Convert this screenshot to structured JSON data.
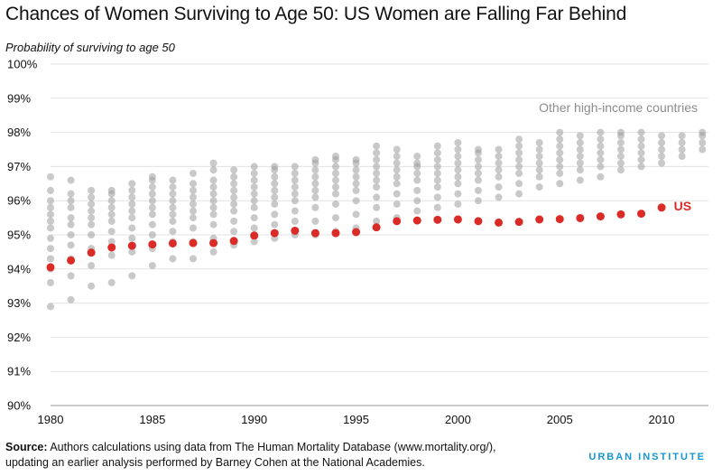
{
  "chart_data": {
    "type": "scatter",
    "title": "Chances of Women Surviving to Age 50: US Women are Falling Far Behind",
    "ylabel": "Probability of surviving to age 50",
    "xlabel": "",
    "xlim": [
      1980,
      2012.3
    ],
    "ylim": [
      90,
      100
    ],
    "x_ticks": [
      1980,
      1985,
      1990,
      1995,
      2000,
      2005,
      2010
    ],
    "y_ticks": [
      90,
      91,
      92,
      93,
      94,
      95,
      96,
      97,
      98,
      99,
      100
    ],
    "y_tick_labels": [
      "90%",
      "91%",
      "92%",
      "93%",
      "94%",
      "95%",
      "96%",
      "97%",
      "98%",
      "99%",
      "100%"
    ],
    "grid": true,
    "series": [
      {
        "name": "US",
        "color": "#db2b27",
        "x": [
          1980,
          1981,
          1982,
          1983,
          1984,
          1985,
          1986,
          1987,
          1988,
          1989,
          1990,
          1991,
          1992,
          1993,
          1994,
          1995,
          1996,
          1997,
          1998,
          1999,
          2000,
          2001,
          2002,
          2003,
          2004,
          2005,
          2006,
          2007,
          2008,
          2009,
          2010
        ],
        "y": [
          94.05,
          94.25,
          94.48,
          94.63,
          94.68,
          94.72,
          94.75,
          94.76,
          94.76,
          94.82,
          94.98,
          95.05,
          95.12,
          95.05,
          95.05,
          95.08,
          95.22,
          95.4,
          95.42,
          95.44,
          95.45,
          95.4,
          95.36,
          95.38,
          95.45,
          95.46,
          95.49,
          95.54,
          95.6,
          95.62,
          95.8
        ]
      },
      {
        "name": "Other high-income countries",
        "color": "#9d9d9d",
        "points": [
          [
            1980,
            [
              92.9,
              93.6,
              94.0,
              94.3,
              94.6,
              94.9,
              95.2,
              95.4,
              95.6,
              95.8,
              96.0,
              96.3,
              96.7
            ]
          ],
          [
            1981,
            [
              93.1,
              93.8,
              94.3,
              94.7,
              95.0,
              95.3,
              95.5,
              95.8,
              96.0,
              96.2,
              96.6
            ]
          ],
          [
            1982,
            [
              93.5,
              94.1,
              94.6,
              95.0,
              95.3,
              95.5,
              95.7,
              95.9,
              96.1,
              96.3
            ]
          ],
          [
            1983,
            [
              93.6,
              94.4,
              94.8,
              95.1,
              95.4,
              95.6,
              95.8,
              96.0,
              96.2,
              96.3
            ]
          ],
          [
            1984,
            [
              93.8,
              94.5,
              94.9,
              95.2,
              95.5,
              95.7,
              95.9,
              96.1,
              96.3,
              96.5
            ]
          ],
          [
            1985,
            [
              94.1,
              94.6,
              95.0,
              95.3,
              95.6,
              95.8,
              96.0,
              96.2,
              96.4,
              96.6,
              96.7
            ]
          ],
          [
            1986,
            [
              94.3,
              94.8,
              95.1,
              95.4,
              95.6,
              95.8,
              96.0,
              96.2,
              96.4,
              96.6
            ]
          ],
          [
            1987,
            [
              94.3,
              94.8,
              95.2,
              95.5,
              95.7,
              95.9,
              96.1,
              96.3,
              96.5,
              96.8
            ]
          ],
          [
            1988,
            [
              94.5,
              94.9,
              95.3,
              95.6,
              95.8,
              96.0,
              96.2,
              96.4,
              96.6,
              96.9,
              97.1
            ]
          ],
          [
            1989,
            [
              94.7,
              95.1,
              95.4,
              95.7,
              95.9,
              96.1,
              96.3,
              96.5,
              96.7,
              96.9
            ]
          ],
          [
            1990,
            [
              94.8,
              95.2,
              95.5,
              95.8,
              96.0,
              96.2,
              96.4,
              96.6,
              96.8,
              97.0
            ]
          ],
          [
            1991,
            [
              94.9,
              95.3,
              95.6,
              95.9,
              96.1,
              96.3,
              96.5,
              96.7,
              96.9,
              97.0
            ]
          ],
          [
            1992,
            [
              95.0,
              95.4,
              95.7,
              96.0,
              96.2,
              96.4,
              96.6,
              96.8,
              97.0
            ]
          ],
          [
            1993,
            [
              95.0,
              95.4,
              95.8,
              96.1,
              96.3,
              96.5,
              96.7,
              96.9,
              97.1,
              97.2
            ]
          ],
          [
            1994,
            [
              95.1,
              95.5,
              95.9,
              96.2,
              96.4,
              96.6,
              96.8,
              97.0,
              97.2,
              97.3
            ]
          ],
          [
            1995,
            [
              95.2,
              95.6,
              96.0,
              96.3,
              96.5,
              96.7,
              96.9,
              97.1,
              97.2
            ]
          ],
          [
            1996,
            [
              95.4,
              95.8,
              96.1,
              96.4,
              96.6,
              96.8,
              97.0,
              97.2,
              97.4,
              97.6
            ]
          ],
          [
            1997,
            [
              95.5,
              95.9,
              96.2,
              96.5,
              96.7,
              96.9,
              97.1,
              97.3,
              97.5
            ]
          ],
          [
            1998,
            [
              95.7,
              96.0,
              96.3,
              96.6,
              96.8,
              97.0,
              97.1,
              97.3
            ]
          ],
          [
            1999,
            [
              95.8,
              96.1,
              96.4,
              96.6,
              96.8,
              97.0,
              97.2,
              97.4,
              97.6
            ]
          ],
          [
            2000,
            [
              95.9,
              96.2,
              96.5,
              96.7,
              96.9,
              97.1,
              97.3,
              97.5,
              97.7
            ]
          ],
          [
            2001,
            [
              96.0,
              96.3,
              96.6,
              96.8,
              97.0,
              97.2,
              97.4,
              97.5
            ]
          ],
          [
            2002,
            [
              96.1,
              96.4,
              96.7,
              96.9,
              97.1,
              97.3,
              97.5
            ]
          ],
          [
            2003,
            [
              96.2,
              96.5,
              96.8,
              97.0,
              97.2,
              97.4,
              97.6,
              97.8
            ]
          ],
          [
            2004,
            [
              96.4,
              96.7,
              96.9,
              97.1,
              97.3,
              97.5,
              97.7
            ]
          ],
          [
            2005,
            [
              96.5,
              96.8,
              97.0,
              97.2,
              97.4,
              97.6,
              97.8,
              98.0
            ]
          ],
          [
            2006,
            [
              96.6,
              96.9,
              97.1,
              97.3,
              97.5,
              97.7,
              97.9
            ]
          ],
          [
            2007,
            [
              96.7,
              97.0,
              97.2,
              97.4,
              97.6,
              97.8,
              98.0
            ]
          ],
          [
            2008,
            [
              96.9,
              97.1,
              97.3,
              97.5,
              97.7,
              97.9,
              98.0
            ]
          ],
          [
            2009,
            [
              97.0,
              97.2,
              97.4,
              97.6,
              97.8,
              98.0
            ]
          ],
          [
            2010,
            [
              97.1,
              97.3,
              97.5,
              97.7,
              97.9
            ]
          ],
          [
            2011,
            [
              97.3,
              97.5,
              97.7,
              97.9
            ]
          ],
          [
            2012,
            [
              97.5,
              97.7,
              97.9,
              98.0
            ]
          ]
        ]
      }
    ],
    "annotations": {
      "other_label": "Other high-income countries",
      "us_label": "US"
    }
  },
  "footer": {
    "source_label": "Source:",
    "source_line1": "Authors calculations using data from The Human Mortality Database (www.mortality.org/),",
    "source_line2": "updating an earlier analysis performed by Barney Cohen at the National Academies.",
    "brand": "URBAN INSTITUTE"
  }
}
